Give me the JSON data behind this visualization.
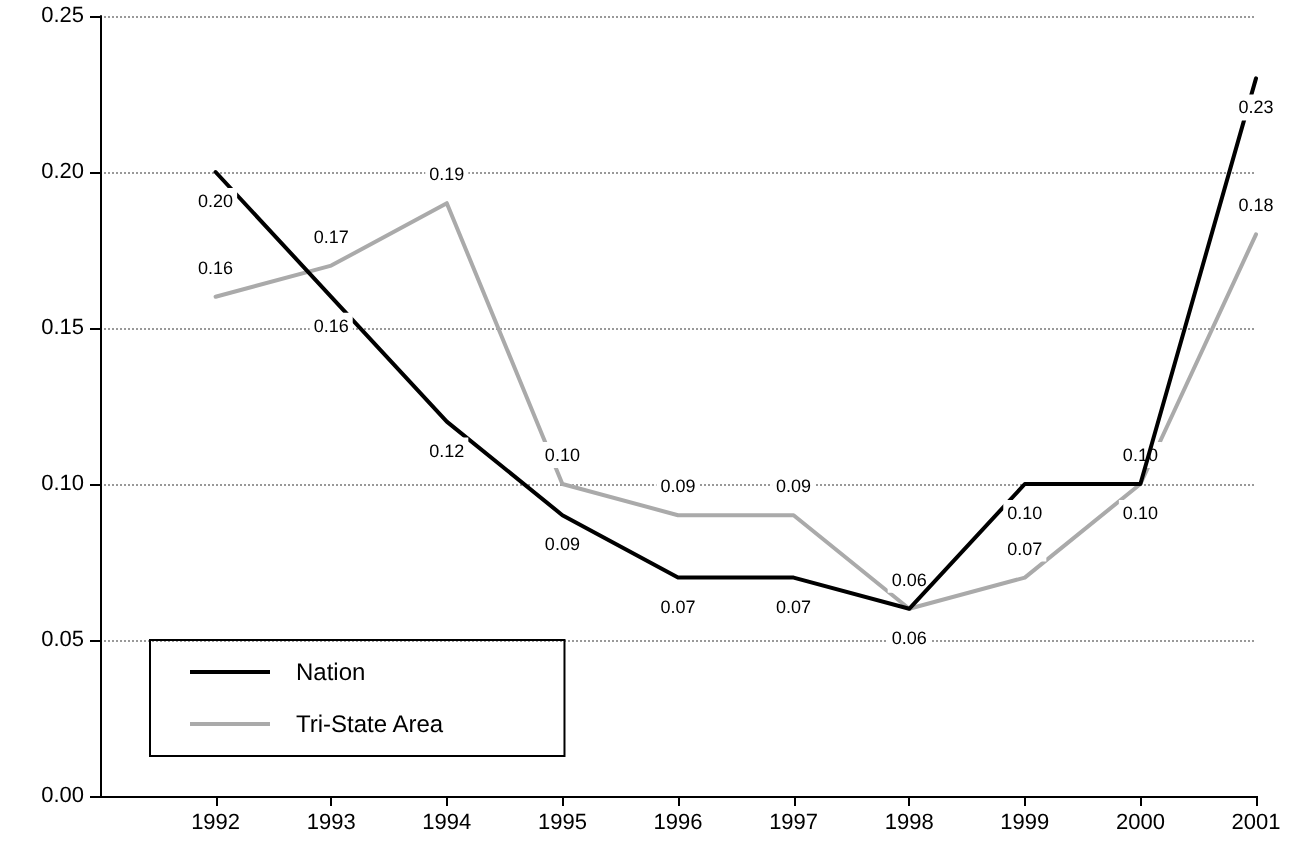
{
  "chart_data": {
    "type": "line",
    "x": [
      1992,
      1993,
      1994,
      1995,
      1996,
      1997,
      1998,
      1999,
      2000,
      2001
    ],
    "xlim": [
      1991,
      2001
    ],
    "xticks": [
      1992,
      1993,
      1994,
      1995,
      1996,
      1997,
      1998,
      1999,
      2000,
      2001
    ],
    "ylim": [
      0,
      0.25
    ],
    "yticks": [
      {
        "value": 0,
        "label": "0.00"
      },
      {
        "value": 0.05,
        "label": "0.05"
      },
      {
        "value": 0.1,
        "label": "0.10"
      },
      {
        "value": 0.15,
        "label": "0.15"
      },
      {
        "value": 0.2,
        "label": "0.20"
      },
      {
        "value": 0.25,
        "label": "0.25"
      }
    ],
    "grid": "y",
    "legend": "bottom left",
    "marker": "none",
    "line_style": "solid",
    "series": [
      {
        "name": "Nation",
        "color": "#000000",
        "values": [
          0.2,
          0.16,
          0.12,
          0.09,
          0.07,
          0.07,
          0.06,
          0.1,
          0.1,
          0.23
        ],
        "value_labels": [
          "0.20",
          "0.16",
          "0.12",
          "0.09",
          "0.07",
          "0.07",
          "0.06",
          "0.10",
          "0.10",
          "0.23"
        ]
      },
      {
        "name": "Tri-State Area",
        "color": "#aaaaaa",
        "values": [
          0.16,
          0.17,
          0.19,
          0.1,
          0.09,
          0.09,
          0.06,
          0.07,
          0.1,
          0.18
        ],
        "value_labels": [
          "0.16",
          "0.17",
          "0.19",
          "0.10",
          "0.09",
          "0.09",
          "0.06",
          "0.07",
          "0.10",
          "0.18"
        ]
      }
    ]
  }
}
